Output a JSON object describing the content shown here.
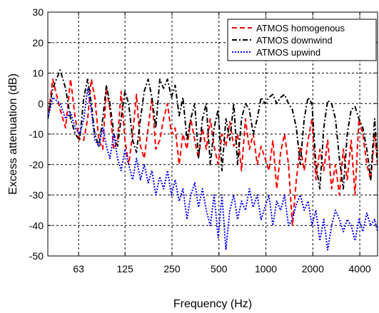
{
  "chart_data": {
    "type": "line",
    "title": "",
    "xlabel": "Frequency (Hz)",
    "ylabel": "Excess attenuation (dB)",
    "x_scale": "log",
    "xlim": [
      40,
      5200
    ],
    "ylim": [
      -50,
      30
    ],
    "xticks": [
      63,
      125,
      250,
      500,
      1000,
      2000,
      4000
    ],
    "xtick_labels": [
      "63",
      "125",
      "250",
      "500",
      "1000",
      "2000",
      "4000"
    ],
    "yticks": [
      -50,
      -40,
      -30,
      -20,
      -10,
      0,
      10,
      20,
      30
    ],
    "ytick_labels": [
      "-50",
      "-40",
      "-30",
      "-20",
      "-10",
      "0",
      "10",
      "20",
      "30"
    ],
    "grid": true,
    "legend_position": "top-right",
    "series": [
      {
        "name": "ATMOS homogenous",
        "color": "#ff0000",
        "line_style": "dashed",
        "x": [
          40,
          43,
          48,
          52,
          56,
          60,
          64,
          68,
          72,
          76,
          80,
          85,
          90,
          95,
          100,
          106,
          112,
          118,
          125,
          132,
          140,
          148,
          157,
          166,
          176,
          186,
          197,
          209,
          221,
          234,
          248,
          262,
          278,
          294,
          312,
          330,
          350,
          370,
          392,
          415,
          440,
          466,
          494,
          523,
          554,
          587,
          622,
          659,
          698,
          740,
          784,
          830,
          880,
          932,
          987,
          1046,
          1108,
          1174,
          1244,
          1318,
          1396,
          1480,
          1568,
          1661,
          1760,
          1864,
          1975,
          2093,
          2217,
          2349,
          2489,
          2637,
          2794,
          2960,
          3136,
          3322,
          3520,
          3729,
          3951,
          4186,
          4435,
          4699,
          4978,
          5200
        ],
        "y": [
          -5,
          8,
          -2,
          -8,
          8,
          -5,
          -12,
          -12,
          -5,
          8,
          2,
          -12,
          -15,
          5,
          -2,
          -15,
          -12,
          4,
          -12,
          -20,
          -10,
          3,
          -14,
          -18,
          -8,
          2,
          -15,
          -12,
          -5,
          0,
          -10,
          -8,
          -20,
          -10,
          -15,
          -5,
          -12,
          -18,
          -8,
          -15,
          -5,
          -14,
          -20,
          -10,
          -14,
          -6,
          -14,
          -10,
          -22,
          -5,
          -15,
          -10,
          -20,
          -14,
          -18,
          -22,
          -12,
          -28,
          -16,
          -10,
          -20,
          -40,
          -25,
          -14,
          -22,
          -12,
          -5,
          -25,
          -15,
          -22,
          -12,
          -28,
          -20,
          -30,
          -15,
          -25,
          -12,
          -30,
          -5,
          -10,
          -20,
          -25,
          -10,
          -20
        ]
      },
      {
        "name": "ATMOS downwind",
        "color": "#000000",
        "line_style": "dashdot",
        "x": [
          40,
          43,
          48,
          52,
          56,
          60,
          64,
          68,
          72,
          76,
          80,
          85,
          90,
          95,
          100,
          106,
          112,
          118,
          125,
          132,
          140,
          148,
          157,
          166,
          176,
          186,
          197,
          209,
          221,
          234,
          248,
          262,
          278,
          294,
          312,
          330,
          350,
          370,
          392,
          415,
          440,
          466,
          494,
          523,
          554,
          587,
          622,
          659,
          698,
          740,
          784,
          830,
          880,
          932,
          987,
          1046,
          1108,
          1174,
          1244,
          1318,
          1396,
          1480,
          1568,
          1661,
          1760,
          1864,
          1975,
          2093,
          2217,
          2349,
          2489,
          2637,
          2794,
          2960,
          3136,
          3322,
          3520,
          3729,
          3951,
          4186,
          4435,
          4699,
          4978,
          5200
        ],
        "y": [
          -5,
          5,
          11,
          5,
          -5,
          -10,
          -12,
          2,
          8,
          0,
          -10,
          -14,
          -5,
          6,
          0,
          -10,
          -14,
          -5,
          4,
          0,
          -12,
          -16,
          -5,
          4,
          8,
          2,
          -8,
          8,
          5,
          8,
          2,
          6,
          -4,
          2,
          -12,
          -5,
          0,
          -18,
          -5,
          0,
          -20,
          -8,
          -2,
          -22,
          -5,
          -12,
          0,
          -20,
          -5,
          0,
          -2,
          -10,
          -5,
          2,
          0,
          2,
          3,
          0,
          2,
          3,
          0,
          -2,
          -8,
          -20,
          -5,
          2,
          0,
          -20,
          -28,
          -8,
          1,
          0,
          -5,
          -18,
          -28,
          -10,
          -2,
          -1,
          -5,
          -8,
          -15,
          -25,
          -5,
          -20
        ]
      },
      {
        "name": "ATMOS upwind",
        "color": "#0000ff",
        "line_style": "dotted",
        "x": [
          40,
          43,
          48,
          52,
          56,
          60,
          64,
          68,
          72,
          76,
          80,
          85,
          90,
          95,
          100,
          106,
          112,
          118,
          125,
          132,
          140,
          148,
          157,
          166,
          176,
          186,
          197,
          209,
          221,
          234,
          248,
          262,
          278,
          294,
          312,
          330,
          350,
          370,
          392,
          415,
          440,
          466,
          494,
          523,
          554,
          587,
          622,
          659,
          698,
          740,
          784,
          830,
          880,
          932,
          987,
          1046,
          1108,
          1174,
          1244,
          1318,
          1396,
          1480,
          1568,
          1661,
          1760,
          1864,
          1975,
          2093,
          2217,
          2349,
          2489,
          2637,
          2794,
          2960,
          3136,
          3322,
          3520,
          3729,
          3951,
          4186,
          4435,
          4699,
          4978,
          5200
        ],
        "y": [
          -5,
          2,
          0,
          -5,
          -3,
          -8,
          -10,
          -5,
          5,
          -2,
          -12,
          -14,
          -8,
          -14,
          -18,
          -10,
          -18,
          -22,
          -15,
          -20,
          -25,
          -18,
          -25,
          -20,
          -26,
          -22,
          -30,
          -24,
          -28,
          -22,
          -30,
          -25,
          -32,
          -28,
          -38,
          -30,
          -26,
          -34,
          -28,
          -35,
          -40,
          -30,
          -44,
          -30,
          -48,
          -35,
          -30,
          -38,
          -32,
          -35,
          -28,
          -34,
          -30,
          -38,
          -34,
          -30,
          -40,
          -32,
          -35,
          -30,
          -40,
          -38,
          -33,
          -30,
          -35,
          -32,
          -40,
          -35,
          -45,
          -38,
          -48,
          -40,
          -35,
          -38,
          -42,
          -38,
          -40,
          -45,
          -38,
          -42,
          -36,
          -40,
          -38,
          -42
        ]
      }
    ]
  }
}
